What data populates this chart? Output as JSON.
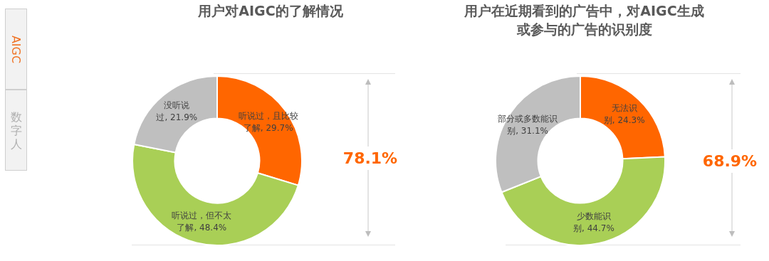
{
  "chart_data": [
    {
      "type": "other",
      "annotations": [
        "AIGC",
        "数字人"
      ]
    },
    {
      "type": "donut",
      "title": "用户对AIGC的了解情况",
      "categories": [
        "听说过，且比较了解",
        "听说过，但不太了解",
        "没听说过"
      ],
      "values": [
        29.7,
        48.4,
        21.9
      ],
      "value_labels": [
        "29.7%",
        "48.4%",
        "21.9%"
      ],
      "colors": [
        "#ff6600",
        "#a9cf56",
        "#bfbfbf"
      ],
      "annotations": [
        "78.1%"
      ]
    },
    {
      "type": "donut",
      "title": "用户在近期看到的广告中，对AIGC生成或参与的广告的识别度",
      "categories": [
        "无法识别",
        "少数能识别",
        "部分或多数能识别"
      ],
      "values": [
        24.3,
        44.7,
        31.1
      ],
      "value_labels": [
        "24.3%",
        "44.7%",
        "31.1%"
      ],
      "colors": [
        "#ff6600",
        "#a9cf56",
        "#bfbfbf"
      ],
      "annotations": [
        "68.9%"
      ]
    }
  ]
}
